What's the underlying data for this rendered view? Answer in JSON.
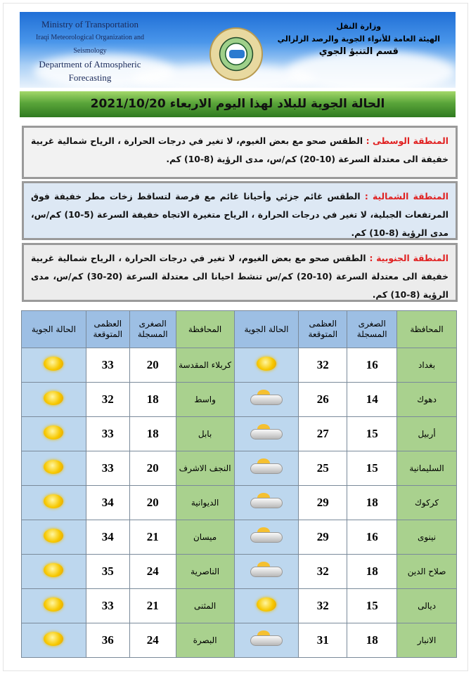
{
  "header": {
    "en_lines": [
      "Ministry of Transportation",
      "Iraqi Meteorological Organization and Seismology",
      "Department of Atmospheric Forecasting"
    ],
    "ar_lines": [
      "وزارة النقل",
      "الهيئة العامة للأنواء الجوية والرصد الزلزالي",
      "قسم التنبؤ الجوي"
    ]
  },
  "title": "الحالة الجوية للبلاد لهذا اليوم  الاربعاء 2021/10/20",
  "regions": [
    {
      "label": "المنطقة الوسطى :",
      "text": " الطقس صحو مع بعض الغيوم، لا تغير في درجات الحرارة ، الرياح شمالية غربية خفيفة الى معتدلة السرعة (10-20) كم/س، مدى الرؤية (8-10) كم."
    },
    {
      "label": "المنطقة الشمالية :",
      "text": " الطقس غائم جزئي وأحيانا غائم مع فرصة لتساقط زخات مطر خفيفة فوق المرتفعات الجبلية، لا تغير في درجات الحرارة ، الرياح متغيرة الاتجاه خفيفة السرعة (5-10) كم/س، مدى الرؤية (8-10) كم."
    },
    {
      "label": "المنطقة الجنوبية :",
      "text": " الطقس صحو مع بعض الغيوم، لا تغير في درجات الحرارة ، الرياح شمالية غربية خفيفة الى معتدلة السرعة (10-20) كم/س تنشط احيانا الى معتدلة السرعة (20-30) كم/س، مدى الرؤية (8-10) كم."
    }
  ],
  "table": {
    "headers": {
      "gov": "المحافظة",
      "min": "الصغرى المسجلة",
      "max": "العظمى المتوقعة",
      "cond": "الحالة الجوية"
    },
    "right": [
      {
        "gov": "بغداد",
        "min": "16",
        "max": "32",
        "cond": "sun-icon"
      },
      {
        "gov": "دهوك",
        "min": "14",
        "max": "26",
        "cond": "partly-cloudy-icon"
      },
      {
        "gov": "أربيل",
        "min": "15",
        "max": "27",
        "cond": "partly-cloudy-icon"
      },
      {
        "gov": "السليمانية",
        "min": "15",
        "max": "25",
        "cond": "partly-cloudy-icon"
      },
      {
        "gov": "كركوك",
        "min": "18",
        "max": "29",
        "cond": "partly-cloudy-icon"
      },
      {
        "gov": "نينوى",
        "min": "16",
        "max": "29",
        "cond": "partly-cloudy-icon"
      },
      {
        "gov": "صلاح الدين",
        "min": "18",
        "max": "32",
        "cond": "partly-cloudy-icon"
      },
      {
        "gov": "ديالى",
        "min": "15",
        "max": "32",
        "cond": "sun-icon"
      },
      {
        "gov": "الانبار",
        "min": "18",
        "max": "31",
        "cond": "partly-cloudy-icon"
      }
    ],
    "left": [
      {
        "gov": "كربلاء المقدسة",
        "min": "20",
        "max": "33",
        "cond": "sun-icon"
      },
      {
        "gov": "واسط",
        "min": "18",
        "max": "32",
        "cond": "sun-icon"
      },
      {
        "gov": "بابل",
        "min": "18",
        "max": "33",
        "cond": "sun-icon"
      },
      {
        "gov": "النجف الاشرف",
        "min": "20",
        "max": "33",
        "cond": "sun-icon"
      },
      {
        "gov": "الديوانية",
        "min": "20",
        "max": "34",
        "cond": "sun-icon"
      },
      {
        "gov": "ميسان",
        "min": "21",
        "max": "34",
        "cond": "sun-icon"
      },
      {
        "gov": "الناصرية",
        "min": "24",
        "max": "35",
        "cond": "sun-icon"
      },
      {
        "gov": "المثنى",
        "min": "21",
        "max": "33",
        "cond": "sun-icon"
      },
      {
        "gov": "البصرة",
        "min": "24",
        "max": "36",
        "cond": "sun-icon"
      }
    ]
  }
}
